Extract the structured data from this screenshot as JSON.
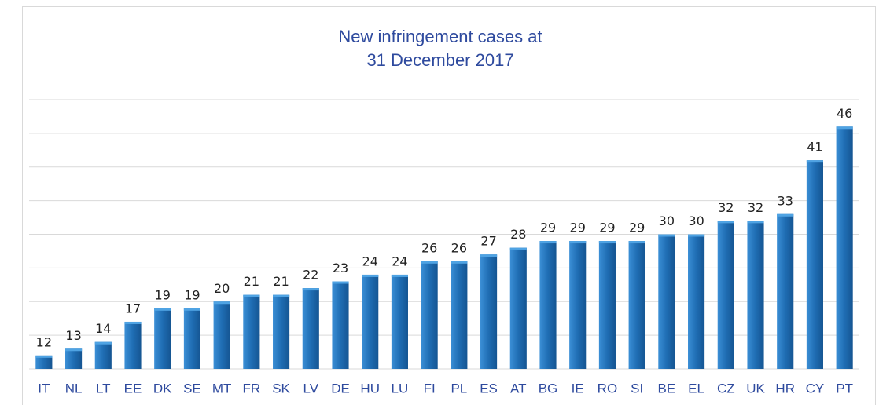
{
  "chart_data": {
    "type": "bar",
    "title": [
      "New infringement cases at",
      "31 December 2017"
    ],
    "categories": [
      "IT",
      "NL",
      "LT",
      "EE",
      "DK",
      "SE",
      "MT",
      "FR",
      "SK",
      "LV",
      "DE",
      "HU",
      "LU",
      "FI",
      "PL",
      "ES",
      "AT",
      "BG",
      "IE",
      "RO",
      "SI",
      "BE",
      "EL",
      "CZ",
      "UK",
      "HR",
      "CY",
      "PT"
    ],
    "values": [
      12,
      13,
      14,
      17,
      19,
      19,
      20,
      21,
      21,
      22,
      23,
      24,
      24,
      26,
      26,
      27,
      28,
      29,
      29,
      29,
      29,
      30,
      30,
      32,
      32,
      33,
      41,
      46
    ],
    "color": "#1f6db3",
    "ylim": [
      10,
      50
    ],
    "yticks": [
      15,
      20,
      25,
      30,
      35,
      40,
      45,
      50
    ],
    "grid": true
  }
}
